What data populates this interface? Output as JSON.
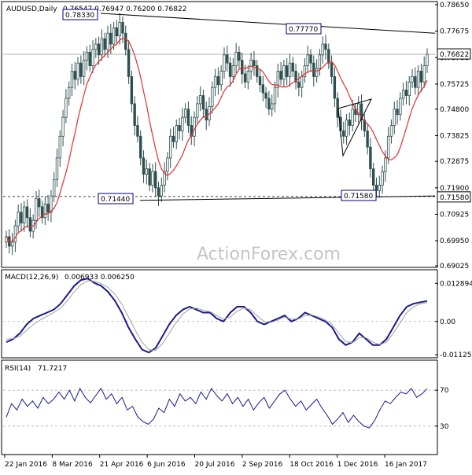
{
  "instrument": "AUDUSD,Daily",
  "ohlc_readout": "0.76547 0.76947 0.76200 0.76822",
  "watermark": "ActionForex.com",
  "colors": {
    "candle": "#2f4f4f",
    "ma": "#e03030",
    "macd": "#1a1a8a",
    "signal": "#a0a0a0",
    "trendline": "#000000",
    "annot_border": "#000080"
  },
  "chart_data": [
    {
      "type": "candlestick",
      "title": "AUDUSD,Daily",
      "ylim": [
        0.69025,
        0.7865
      ],
      "y_ticks": [
        "0.78650",
        "0.77675",
        "0.76700",
        "0.75725",
        "0.74800",
        "0.73825",
        "0.72875",
        "0.71900",
        "0.70925",
        "0.69950",
        "0.69025"
      ],
      "last_price": "0.76822",
      "reference_level": "0.71580",
      "annotations": [
        "0.78330",
        "0.77770",
        "0.71440",
        "0.71580"
      ],
      "moving_average": "red line",
      "x_tick_labels": [
        "22 Jan 2016",
        "8 Mar 2016",
        "21 Apr 2016",
        "6 Jun 2016",
        "20 Jul 2016",
        "2 Sep 2016",
        "18 Oct 2016",
        "1 Dec 2016",
        "16 Jan 2017"
      ],
      "closes": [
        0.701,
        0.6975,
        0.699,
        0.705,
        0.71,
        0.706,
        0.712,
        0.708,
        0.703,
        0.707,
        0.715,
        0.712,
        0.708,
        0.713,
        0.71,
        0.716,
        0.722,
        0.73,
        0.738,
        0.745,
        0.752,
        0.756,
        0.762,
        0.759,
        0.765,
        0.76,
        0.766,
        0.769,
        0.764,
        0.77,
        0.772,
        0.768,
        0.774,
        0.77,
        0.776,
        0.772,
        0.778,
        0.775,
        0.78,
        0.776,
        0.77,
        0.76,
        0.75,
        0.742,
        0.738,
        0.73,
        0.724,
        0.726,
        0.72,
        0.725,
        0.719,
        0.716,
        0.72,
        0.725,
        0.73,
        0.738,
        0.736,
        0.742,
        0.74,
        0.745,
        0.748,
        0.742,
        0.738,
        0.745,
        0.75,
        0.753,
        0.748,
        0.744,
        0.749,
        0.756,
        0.76,
        0.757,
        0.762,
        0.768,
        0.765,
        0.76,
        0.764,
        0.769,
        0.766,
        0.761,
        0.758,
        0.762,
        0.766,
        0.764,
        0.76,
        0.757,
        0.754,
        0.752,
        0.748,
        0.75,
        0.756,
        0.762,
        0.759,
        0.764,
        0.76,
        0.765,
        0.762,
        0.758,
        0.756,
        0.76,
        0.764,
        0.768,
        0.765,
        0.76,
        0.763,
        0.768,
        0.772,
        0.77,
        0.765,
        0.76,
        0.752,
        0.745,
        0.74,
        0.738,
        0.744,
        0.742,
        0.748,
        0.746,
        0.75,
        0.744,
        0.74,
        0.734,
        0.726,
        0.72,
        0.718,
        0.72,
        0.725,
        0.73,
        0.738,
        0.742,
        0.748,
        0.746,
        0.752,
        0.755,
        0.753,
        0.758,
        0.76,
        0.756,
        0.762,
        0.758,
        0.764,
        0.7682
      ]
    },
    {
      "type": "line",
      "title": "MACD(12,26,9)",
      "readout": "0.006933 0.006250",
      "y_ticks": [
        "0.012894",
        "0.00",
        "-0.011253"
      ],
      "ylim": [
        -0.0115,
        0.0135
      ],
      "series": [
        {
          "name": "MACD",
          "values": [
            -0.007,
            -0.006,
            -0.004,
            -0.001,
            0.001,
            0.002,
            0.003,
            0.004,
            0.006,
            0.009,
            0.012,
            0.014,
            0.0145,
            0.013,
            0.012,
            0.01,
            0.007,
            0.003,
            -0.002,
            -0.006,
            -0.0095,
            -0.0105,
            -0.009,
            -0.005,
            -0.001,
            0.002,
            0.004,
            0.005,
            0.004,
            0.003,
            0.003,
            0.001,
            0.0,
            0.003,
            0.005,
            0.005,
            0.003,
            0.0,
            -0.001,
            0.0,
            0.001,
            0.002,
            0.0,
            0.001,
            0.003,
            0.002,
            0.001,
            0.0,
            -0.002,
            -0.006,
            -0.008,
            -0.007,
            -0.004,
            -0.006,
            -0.008,
            -0.008,
            -0.006,
            -0.002,
            0.002,
            0.005,
            0.006,
            0.0065,
            0.0069
          ]
        },
        {
          "name": "Signal",
          "values": [
            -0.006,
            -0.0058,
            -0.005,
            -0.003,
            -0.001,
            0.0005,
            0.0018,
            0.003,
            0.0045,
            0.007,
            0.01,
            0.0125,
            0.0138,
            0.0136,
            0.0128,
            0.0115,
            0.0092,
            0.006,
            0.0015,
            -0.003,
            -0.007,
            -0.0095,
            -0.0098,
            -0.0075,
            -0.004,
            -0.0005,
            0.0025,
            0.0042,
            0.0045,
            0.0038,
            0.0033,
            0.002,
            0.0008,
            0.0015,
            0.0035,
            0.0045,
            0.004,
            0.0018,
            0.0,
            -0.0003,
            0.0005,
            0.0015,
            0.0008,
            0.0008,
            0.002,
            0.0022,
            0.0015,
            0.0005,
            -0.001,
            -0.004,
            -0.0068,
            -0.0072,
            -0.0055,
            -0.0055,
            -0.007,
            -0.0078,
            -0.007,
            -0.004,
            -0.0005,
            0.003,
            0.005,
            0.006,
            0.0063
          ]
        }
      ]
    },
    {
      "type": "line",
      "title": "RSI(14)",
      "readout": "71.7217",
      "y_ticks": [
        "70",
        "30"
      ],
      "ylim": [
        0,
        100
      ],
      "series": [
        {
          "name": "RSI(14)",
          "values": [
            40,
            55,
            48,
            60,
            52,
            58,
            50,
            62,
            55,
            60,
            68,
            60,
            70,
            58,
            72,
            62,
            56,
            64,
            72,
            60,
            66,
            55,
            62,
            48,
            52,
            40,
            35,
            32,
            38,
            50,
            45,
            60,
            52,
            66,
            58,
            62,
            55,
            68,
            60,
            72,
            64,
            58,
            66,
            55,
            62,
            52,
            60,
            48,
            56,
            62,
            50,
            58,
            66,
            70,
            60,
            52,
            58,
            48,
            54,
            60,
            50,
            42,
            32,
            38,
            45,
            34,
            42,
            35,
            30,
            28,
            36,
            48,
            58,
            55,
            62,
            68,
            66,
            72,
            62,
            66,
            71.7
          ]
        }
      ]
    }
  ]
}
